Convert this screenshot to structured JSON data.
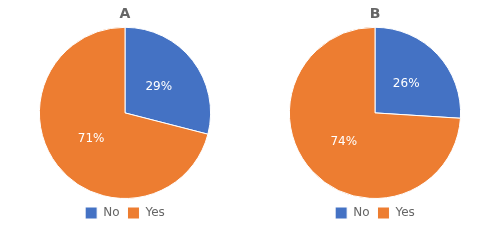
{
  "chart_data": [
    {
      "type": "pie",
      "title": "A",
      "categories": [
        "No",
        "Yes"
      ],
      "values": [
        29,
        71
      ],
      "value_labels": [
        "29%",
        "71%"
      ],
      "colors": [
        "#4472c4",
        "#ed7d31"
      ],
      "data_labels": true,
      "legend": "bottom"
    },
    {
      "type": "pie",
      "title": "B",
      "categories": [
        "No",
        "Yes"
      ],
      "values": [
        26,
        74
      ],
      "value_labels": [
        "26%",
        "74%"
      ],
      "colors": [
        "#4472c4",
        "#ed7d31"
      ],
      "data_labels": true,
      "legend": "bottom"
    }
  ]
}
